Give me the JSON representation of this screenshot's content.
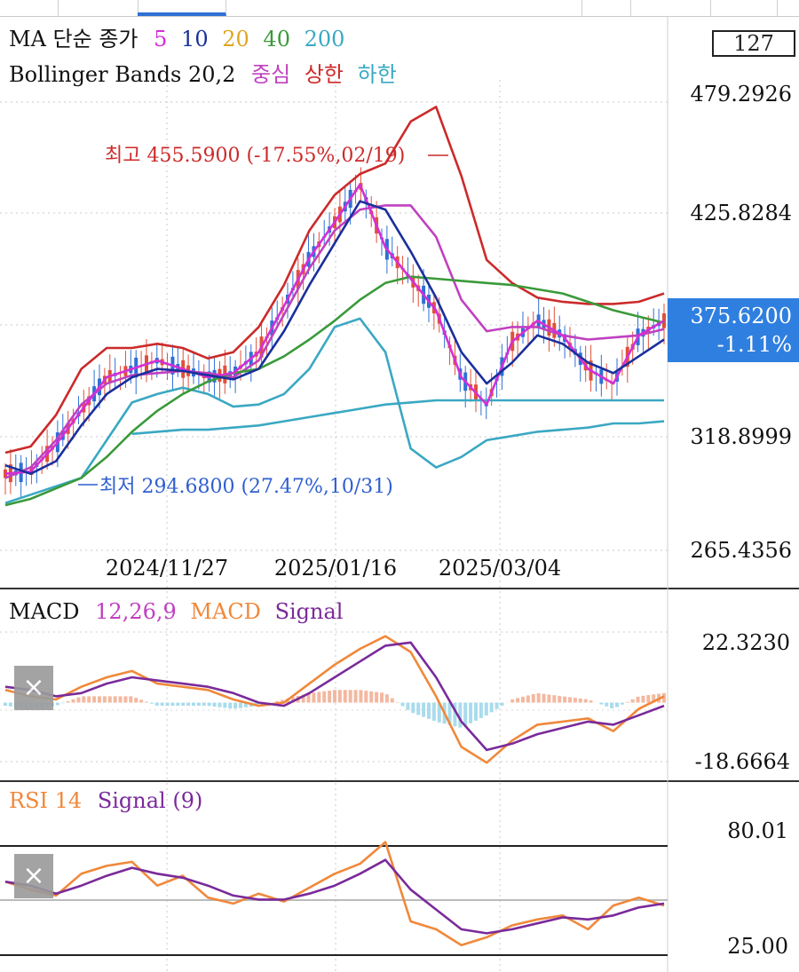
{
  "colors": {
    "ma5": "#d52ed6",
    "ma10": "#1a2f9c",
    "ma20": "#e0a520",
    "ma40": "#3a9a3a",
    "ma200": "#3aa8c2",
    "bb_upper": "#cc2a2a",
    "bb_mid": "#c040c0",
    "bb_lower": "#3aa8c2",
    "up_candle": "#e0503a",
    "down_candle": "#2f6fd6",
    "macd": "#f0883a",
    "signal": "#7a2a9a",
    "badge": "#2f7fe0"
  },
  "header": {
    "count_box": "127"
  },
  "legend_ma": {
    "title": "MA 단순 종가",
    "p5": "5",
    "p10": "10",
    "p20": "20",
    "p40": "40",
    "p200": "200"
  },
  "legend_bb": {
    "title": "Bollinger Bands 20,2",
    "mid": "중심",
    "upper": "상한",
    "lower": "하한"
  },
  "price_panel": {
    "y_ticks": [
      "479.2926",
      "425.8284",
      "318.8999",
      "265.4356"
    ],
    "x_ticks": [
      "2024/11/27",
      "2025/01/16",
      "2025/03/04"
    ],
    "high_label": "최고 455.5900 (-17.55%,02/19)",
    "low_label": "최저 294.6800 (27.47%,10/31)",
    "last_price": "375.6200",
    "last_change": "-1.11%"
  },
  "macd_panel": {
    "title": "MACD",
    "params": "12,26,9",
    "macd_label": "MACD",
    "signal_label": "Signal",
    "y_ticks": [
      "22.3230",
      "-18.6664"
    ],
    "close_icon": "×"
  },
  "rsi_panel": {
    "title": "RSI 14",
    "signal_label": "Signal (9)",
    "y_ticks": [
      "80.01",
      "25.00"
    ],
    "close_icon": "×"
  },
  "chart_data": [
    {
      "type": "line",
      "panel": "price",
      "ylim": [
        265.4356,
        479.2926
      ],
      "x": [
        0,
        5,
        10,
        15,
        20,
        25,
        30,
        35,
        40,
        45,
        50,
        55,
        60,
        65,
        70,
        75,
        80,
        85,
        90,
        95,
        100,
        105,
        110,
        115,
        120,
        125,
        130
      ],
      "series": [
        {
          "name": "상한",
          "values": [
            312,
            315,
            330,
            352,
            362,
            362,
            364,
            362,
            357,
            360,
            372,
            392,
            418,
            435,
            445,
            450,
            470,
            477,
            444,
            404,
            393,
            386,
            384,
            383,
            383,
            384,
            388
          ]
        },
        {
          "name": "중심",
          "values": [
            300,
            305,
            318,
            335,
            345,
            349,
            350,
            351,
            350,
            348,
            356,
            378,
            400,
            418,
            428,
            430,
            430,
            415,
            385,
            370,
            372,
            372,
            368,
            366,
            367,
            368,
            371
          ]
        },
        {
          "name": "하한",
          "values": [
            288,
            292,
            296,
            300,
            318,
            336,
            340,
            343,
            340,
            334,
            335,
            340,
            352,
            372,
            376,
            360,
            314,
            305,
            310,
            318,
            320,
            322,
            323,
            324,
            326,
            326,
            327
          ]
        },
        {
          "name": "200",
          "values": [
            null,
            null,
            null,
            null,
            null,
            321,
            322,
            323,
            323,
            324,
            325,
            327,
            329,
            331,
            333,
            335,
            336,
            337,
            337,
            337,
            337,
            337,
            337,
            337,
            337,
            337,
            337
          ]
        },
        {
          "name": "40",
          "values": [
            287,
            290,
            295,
            300,
            310,
            322,
            332,
            340,
            346,
            350,
            352,
            358,
            366,
            375,
            385,
            393,
            396,
            395,
            394,
            393,
            392,
            390,
            388,
            384,
            380,
            377,
            374
          ]
        },
        {
          "name": "5",
          "values": [
            302,
            303,
            316,
            332,
            348,
            352,
            356,
            352,
            348,
            350,
            360,
            382,
            405,
            422,
            440,
            410,
            395,
            380,
            348,
            335,
            365,
            375,
            368,
            352,
            345,
            368,
            375
          ]
        },
        {
          "name": "10",
          "values": [
            306,
            302,
            308,
            325,
            340,
            348,
            352,
            351,
            349,
            347,
            352,
            370,
            392,
            412,
            432,
            428,
            408,
            386,
            360,
            345,
            355,
            368,
            364,
            355,
            350,
            358,
            366
          ]
        }
      ],
      "high": {
        "value": 455.59,
        "date": "02/19"
      },
      "low": {
        "value": 294.68,
        "date": "10/31"
      },
      "last": 375.62
    },
    {
      "type": "line",
      "panel": "macd",
      "ylim": [
        -18.6664,
        22.323
      ],
      "x": [
        0,
        5,
        10,
        15,
        20,
        25,
        30,
        35,
        40,
        45,
        50,
        55,
        60,
        65,
        70,
        75,
        80,
        85,
        90,
        95,
        100,
        105,
        110,
        115,
        120,
        125,
        130
      ],
      "series": [
        {
          "name": "MACD",
          "values": [
            4,
            2,
            1,
            5,
            8,
            10,
            6,
            5,
            4,
            1,
            -1,
            0,
            6,
            12,
            17,
            21,
            16,
            2,
            -14,
            -19,
            -12,
            -7,
            -6,
            -5,
            -9,
            -2,
            2
          ]
        },
        {
          "name": "Signal",
          "values": [
            5,
            4,
            2,
            3,
            6,
            8,
            7,
            6,
            5,
            3,
            0,
            -1,
            3,
            8,
            13,
            18,
            19,
            8,
            -6,
            -15,
            -13,
            -10,
            -8,
            -6,
            -7,
            -4,
            -1
          ]
        }
      ],
      "histogram": [
        -1,
        -2,
        -1,
        2,
        2,
        2,
        -1,
        -1,
        -1,
        -2,
        -1,
        1,
        3,
        4,
        4,
        3,
        -3,
        -6,
        -8,
        -4,
        1,
        3,
        2,
        1,
        -2,
        2,
        3
      ]
    },
    {
      "type": "line",
      "panel": "rsi",
      "ylim": [
        25.0,
        80.01
      ],
      "x": [
        0,
        5,
        10,
        15,
        20,
        25,
        30,
        35,
        40,
        45,
        50,
        55,
        60,
        65,
        70,
        75,
        80,
        85,
        90,
        95,
        100,
        105,
        110,
        115,
        120,
        125,
        130
      ],
      "series": [
        {
          "name": "RSI 14",
          "values": [
            62,
            58,
            55,
            66,
            70,
            72,
            60,
            65,
            54,
            51,
            56,
            52,
            59,
            66,
            71,
            82,
            42,
            38,
            30,
            34,
            40,
            43,
            45,
            38,
            50,
            54,
            50
          ]
        },
        {
          "name": "Signal (9)",
          "values": [
            62,
            60,
            56,
            60,
            65,
            69,
            66,
            64,
            60,
            55,
            53,
            53,
            56,
            60,
            66,
            73,
            58,
            48,
            38,
            36,
            38,
            41,
            44,
            43,
            45,
            49,
            51
          ]
        }
      ],
      "levels": [
        80.01,
        50,
        25.0
      ]
    }
  ]
}
